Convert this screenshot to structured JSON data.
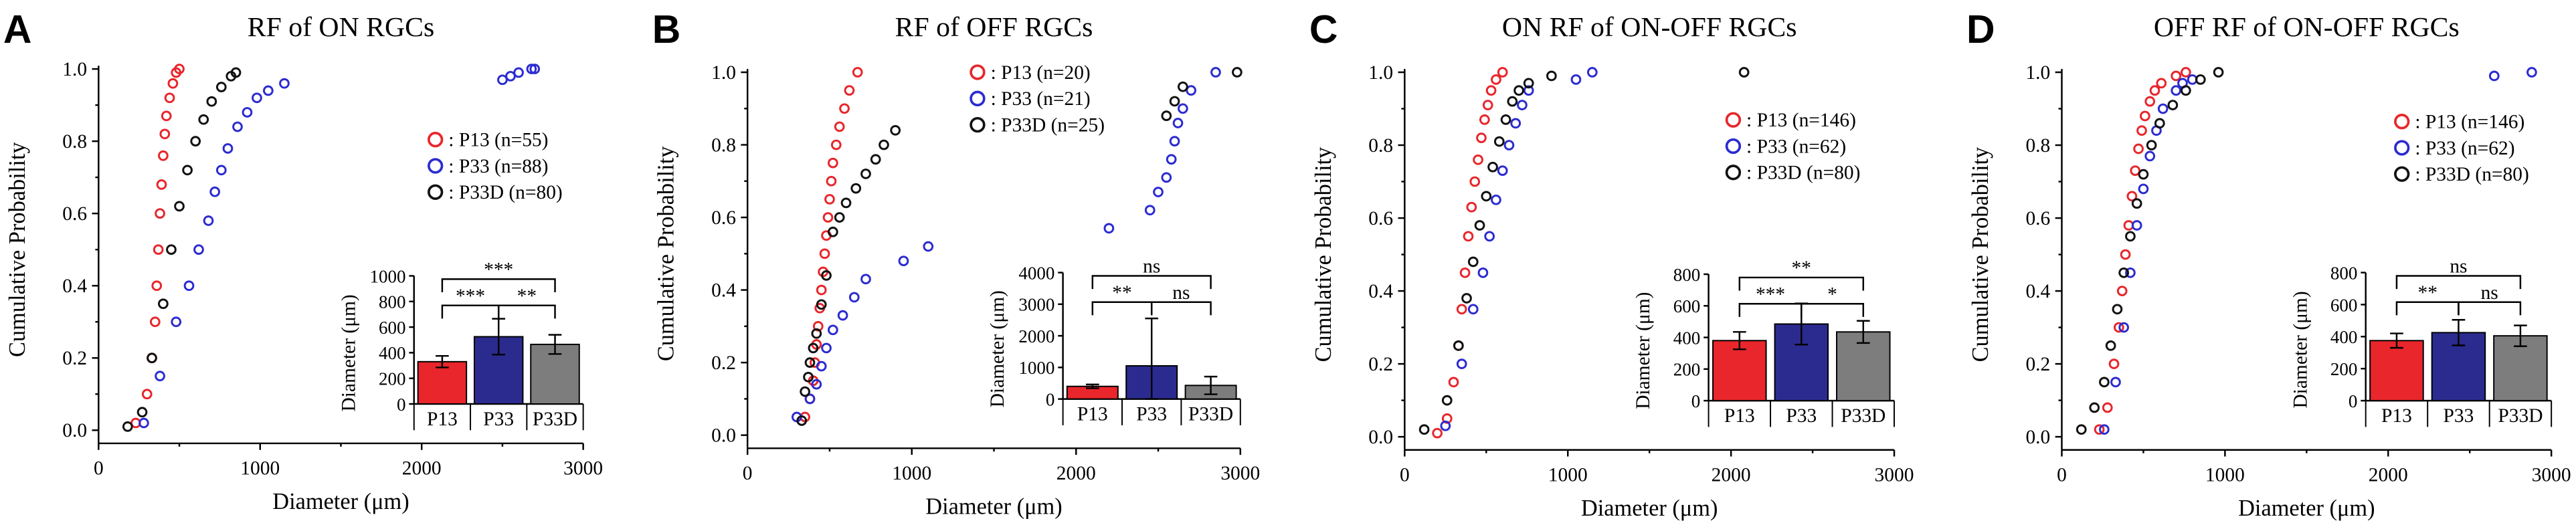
{
  "chart_data": [
    {
      "type": "scatter",
      "panel_letter": "A",
      "title": "RF of ON RGCs",
      "xlabel": "Diameter (μm)",
      "ylabel": "Cumulative  Probability",
      "xlim": [
        0,
        3000
      ],
      "ylim": [
        0,
        1.0
      ],
      "xticks": [
        "0",
        "1000",
        "2000",
        "3000"
      ],
      "yticks": [
        "0.0",
        "0.2",
        "0.4",
        "0.6",
        "0.8",
        "1.0"
      ],
      "series": [
        {
          "name": "P13",
          "n": 55,
          "color": "#e8262b",
          "legend": ":  P13 (n=55)",
          "x": [
            230,
            300,
            330,
            350,
            360,
            370,
            380,
            390,
            400,
            410,
            420,
            440,
            460,
            480,
            500
          ],
          "y": [
            0.02,
            0.1,
            0.2,
            0.3,
            0.4,
            0.5,
            0.6,
            0.68,
            0.76,
            0.82,
            0.87,
            0.92,
            0.96,
            0.99,
            1.0
          ]
        },
        {
          "name": "P33",
          "n": 88,
          "color": "#2b2bd1",
          "legend": ":  P33 (n=88)",
          "x": [
            280,
            380,
            480,
            560,
            620,
            680,
            720,
            760,
            800,
            860,
            920,
            980,
            1050,
            1150,
            2500,
            2550,
            2600,
            2680,
            2700
          ],
          "y": [
            0.02,
            0.15,
            0.3,
            0.4,
            0.5,
            0.58,
            0.66,
            0.72,
            0.78,
            0.84,
            0.88,
            0.92,
            0.94,
            0.96,
            0.97,
            0.98,
            0.99,
            1.0,
            1.0
          ]
        },
        {
          "name": "P33D",
          "n": 80,
          "color": "#111111",
          "legend": ":  P33D (n=80)",
          "x": [
            180,
            270,
            330,
            400,
            450,
            500,
            550,
            600,
            650,
            700,
            760,
            820,
            850
          ],
          "y": [
            0.01,
            0.05,
            0.2,
            0.35,
            0.5,
            0.62,
            0.72,
            0.8,
            0.86,
            0.91,
            0.95,
            0.98,
            0.99
          ]
        }
      ],
      "inset": {
        "type": "bar",
        "ylabel": "Diameter (μm)",
        "ylim": [
          0,
          1000
        ],
        "yticks": [
          "0",
          "200",
          "400",
          "600",
          "800",
          "1000"
        ],
        "categories": [
          "P13",
          "P33",
          "P33D"
        ],
        "values": [
          330,
          525,
          465
        ],
        "errors": [
          45,
          140,
          75
        ],
        "colors": [
          "#e8262b",
          "#2b2b8f",
          "#7d7d7d"
        ],
        "significance": [
          {
            "pair": [
              0,
              2
            ],
            "label": "***"
          },
          {
            "pair": [
              0,
              1
            ],
            "label": "***"
          },
          {
            "pair": [
              1,
              2
            ],
            "label": "**"
          }
        ]
      }
    },
    {
      "type": "scatter",
      "panel_letter": "B",
      "title": "RF of OFF RGCs",
      "xlabel": "Diameter (μm)",
      "ylabel": "Cumulative  Probability",
      "xlim": [
        0,
        3000
      ],
      "ylim": [
        0,
        1.0
      ],
      "xticks": [
        "0",
        "1000",
        "2000",
        "3000"
      ],
      "yticks": [
        "0.0",
        "0.2",
        "0.4",
        "0.6",
        "0.8",
        "1.0"
      ],
      "series": [
        {
          "name": "P13",
          "n": 20,
          "color": "#e8262b",
          "legend": ":  P13 (n=20)",
          "x": [
            350,
            380,
            400,
            410,
            420,
            430,
            440,
            450,
            460,
            470,
            480,
            490,
            500,
            510,
            520,
            540,
            560,
            590,
            620,
            670
          ],
          "y": [
            0.05,
            0.1,
            0.15,
            0.2,
            0.25,
            0.3,
            0.35,
            0.4,
            0.45,
            0.5,
            0.55,
            0.6,
            0.65,
            0.7,
            0.75,
            0.8,
            0.85,
            0.9,
            0.95,
            1.0
          ]
        },
        {
          "name": "P33",
          "n": 21,
          "color": "#2b2bd1",
          "legend": ":  P33 (n=21)",
          "x": [
            300,
            380,
            420,
            450,
            480,
            520,
            580,
            650,
            720,
            950,
            1100,
            2200,
            2450,
            2500,
            2550,
            2580,
            2600,
            2620,
            2650,
            2700,
            2850
          ],
          "y": [
            0.05,
            0.1,
            0.14,
            0.19,
            0.24,
            0.29,
            0.33,
            0.38,
            0.43,
            0.48,
            0.52,
            0.57,
            0.62,
            0.67,
            0.71,
            0.76,
            0.81,
            0.86,
            0.9,
            0.95,
            1.0
          ]
        },
        {
          "name": "P33D",
          "n": 25,
          "color": "#111111",
          "legend": ":  P33D (n=25)",
          "x": [
            330,
            350,
            370,
            380,
            400,
            420,
            450,
            480,
            520,
            560,
            600,
            660,
            720,
            780,
            830,
            900,
            2550,
            2600,
            2650,
            2980
          ],
          "y": [
            0.04,
            0.12,
            0.16,
            0.2,
            0.24,
            0.28,
            0.36,
            0.44,
            0.56,
            0.6,
            0.64,
            0.68,
            0.72,
            0.76,
            0.8,
            0.84,
            0.88,
            0.92,
            0.96,
            1.0
          ]
        }
      ],
      "inset": {
        "type": "bar",
        "ylabel": "Diameter (μm)",
        "ylim": [
          0,
          4000
        ],
        "yticks": [
          "0",
          "1000",
          "2000",
          "3000",
          "4000"
        ],
        "categories": [
          "P13",
          "P33",
          "P33D"
        ],
        "values": [
          400,
          1050,
          430
        ],
        "errors": [
          60,
          1500,
          280
        ],
        "colors": [
          "#e8262b",
          "#2b2b8f",
          "#7d7d7d"
        ],
        "significance": [
          {
            "pair": [
              0,
              2
            ],
            "label": "ns"
          },
          {
            "pair": [
              0,
              1
            ],
            "label": "**"
          },
          {
            "pair": [
              1,
              2
            ],
            "label": "ns"
          }
        ]
      }
    },
    {
      "type": "scatter",
      "panel_letter": "C",
      "title": "ON RF of ON-OFF RGCs",
      "xlabel": "Diameter (μm)",
      "ylabel": "Cumulative  Probability",
      "xlim": [
        0,
        3000
      ],
      "ylim": [
        0,
        1.0
      ],
      "xticks": [
        "0",
        "1000",
        "2000",
        "3000"
      ],
      "yticks": [
        "0.0",
        "0.2",
        "0.4",
        "0.6",
        "0.8",
        "1.0"
      ],
      "series": [
        {
          "name": "P13",
          "n": 146,
          "color": "#e8262b",
          "legend": ":  P13 (n=146)",
          "x": [
            200,
            260,
            300,
            330,
            350,
            370,
            390,
            410,
            430,
            450,
            470,
            490,
            510,
            530,
            560,
            600
          ],
          "y": [
            0.01,
            0.05,
            0.15,
            0.25,
            0.35,
            0.45,
            0.55,
            0.63,
            0.7,
            0.76,
            0.82,
            0.87,
            0.91,
            0.95,
            0.98,
            1.0
          ]
        },
        {
          "name": "P33",
          "n": 62,
          "color": "#2b2bd1",
          "legend": ":  P33 (n=62)",
          "x": [
            250,
            350,
            420,
            480,
            520,
            560,
            600,
            640,
            680,
            720,
            760,
            1050,
            1150
          ],
          "y": [
            0.03,
            0.2,
            0.35,
            0.45,
            0.55,
            0.65,
            0.73,
            0.8,
            0.86,
            0.91,
            0.95,
            0.98,
            1.0
          ]
        },
        {
          "name": "P33D",
          "n": 80,
          "color": "#111111",
          "legend": ":  P33D (n=80)",
          "x": [
            120,
            260,
            330,
            380,
            420,
            460,
            500,
            540,
            580,
            620,
            660,
            700,
            760,
            900,
            2080
          ],
          "y": [
            0.02,
            0.1,
            0.25,
            0.38,
            0.48,
            0.58,
            0.66,
            0.74,
            0.81,
            0.87,
            0.92,
            0.95,
            0.97,
            0.99,
            1.0
          ]
        }
      ],
      "inset": {
        "type": "bar",
        "ylabel": "Diameter (μm)",
        "ylim": [
          0,
          800
        ],
        "yticks": [
          "0",
          "200",
          "400",
          "600",
          "800"
        ],
        "categories": [
          "P13",
          "P33",
          "P33D"
        ],
        "values": [
          380,
          485,
          435
        ],
        "errors": [
          55,
          130,
          70
        ],
        "colors": [
          "#e8262b",
          "#2b2b8f",
          "#7d7d7d"
        ],
        "significance": [
          {
            "pair": [
              0,
              2
            ],
            "label": "**"
          },
          {
            "pair": [
              0,
              1
            ],
            "label": "***"
          },
          {
            "pair": [
              1,
              2
            ],
            "label": "*"
          }
        ]
      }
    },
    {
      "type": "scatter",
      "panel_letter": "D",
      "title": "OFF RF of ON-OFF RGCs",
      "xlabel": "Diameter (μm)",
      "ylabel": "Cumulative  Probability",
      "xlim": [
        0,
        3000
      ],
      "ylim": [
        0,
        1.0
      ],
      "xticks": [
        "0",
        "1000",
        "2000",
        "3000"
      ],
      "yticks": [
        "0.0",
        "0.2",
        "0.4",
        "0.6",
        "0.8",
        "1.0"
      ],
      "series": [
        {
          "name": "P13",
          "n": 146,
          "color": "#e8262b",
          "legend": ":  P13 (n=146)",
          "x": [
            230,
            280,
            320,
            350,
            370,
            390,
            410,
            430,
            450,
            470,
            490,
            510,
            540,
            570,
            610,
            700,
            760
          ],
          "y": [
            0.02,
            0.08,
            0.2,
            0.3,
            0.4,
            0.5,
            0.58,
            0.66,
            0.73,
            0.79,
            0.84,
            0.88,
            0.92,
            0.95,
            0.97,
            0.99,
            1.0
          ]
        },
        {
          "name": "P33",
          "n": 62,
          "color": "#2b2bd1",
          "legend": ":  P33 (n=62)",
          "x": [
            260,
            330,
            380,
            420,
            460,
            500,
            540,
            580,
            620,
            700,
            740,
            800,
            2650,
            2880
          ],
          "y": [
            0.02,
            0.15,
            0.3,
            0.45,
            0.58,
            0.68,
            0.77,
            0.84,
            0.9,
            0.95,
            0.97,
            0.98,
            0.99,
            1.0
          ]
        },
        {
          "name": "P33D",
          "n": 80,
          "color": "#111111",
          "legend": ":  P33D (n=80)",
          "x": [
            120,
            200,
            260,
            300,
            340,
            380,
            420,
            460,
            500,
            550,
            600,
            680,
            760,
            850,
            960
          ],
          "y": [
            0.02,
            0.08,
            0.15,
            0.25,
            0.35,
            0.45,
            0.55,
            0.64,
            0.72,
            0.8,
            0.86,
            0.91,
            0.95,
            0.98,
            1.0
          ]
        }
      ],
      "inset": {
        "type": "bar",
        "ylabel": "Diameter (μm)",
        "ylim": [
          0,
          800
        ],
        "yticks": [
          "0",
          "200",
          "400",
          "600",
          "800"
        ],
        "categories": [
          "P13",
          "P33",
          "P33D"
        ],
        "values": [
          375,
          425,
          405
        ],
        "errors": [
          45,
          80,
          65
        ],
        "colors": [
          "#e8262b",
          "#2b2b8f",
          "#7d7d7d"
        ],
        "significance": [
          {
            "pair": [
              0,
              2
            ],
            "label": "ns"
          },
          {
            "pair": [
              0,
              1
            ],
            "label": "**"
          },
          {
            "pair": [
              1,
              2
            ],
            "label": "ns"
          }
        ]
      }
    }
  ]
}
